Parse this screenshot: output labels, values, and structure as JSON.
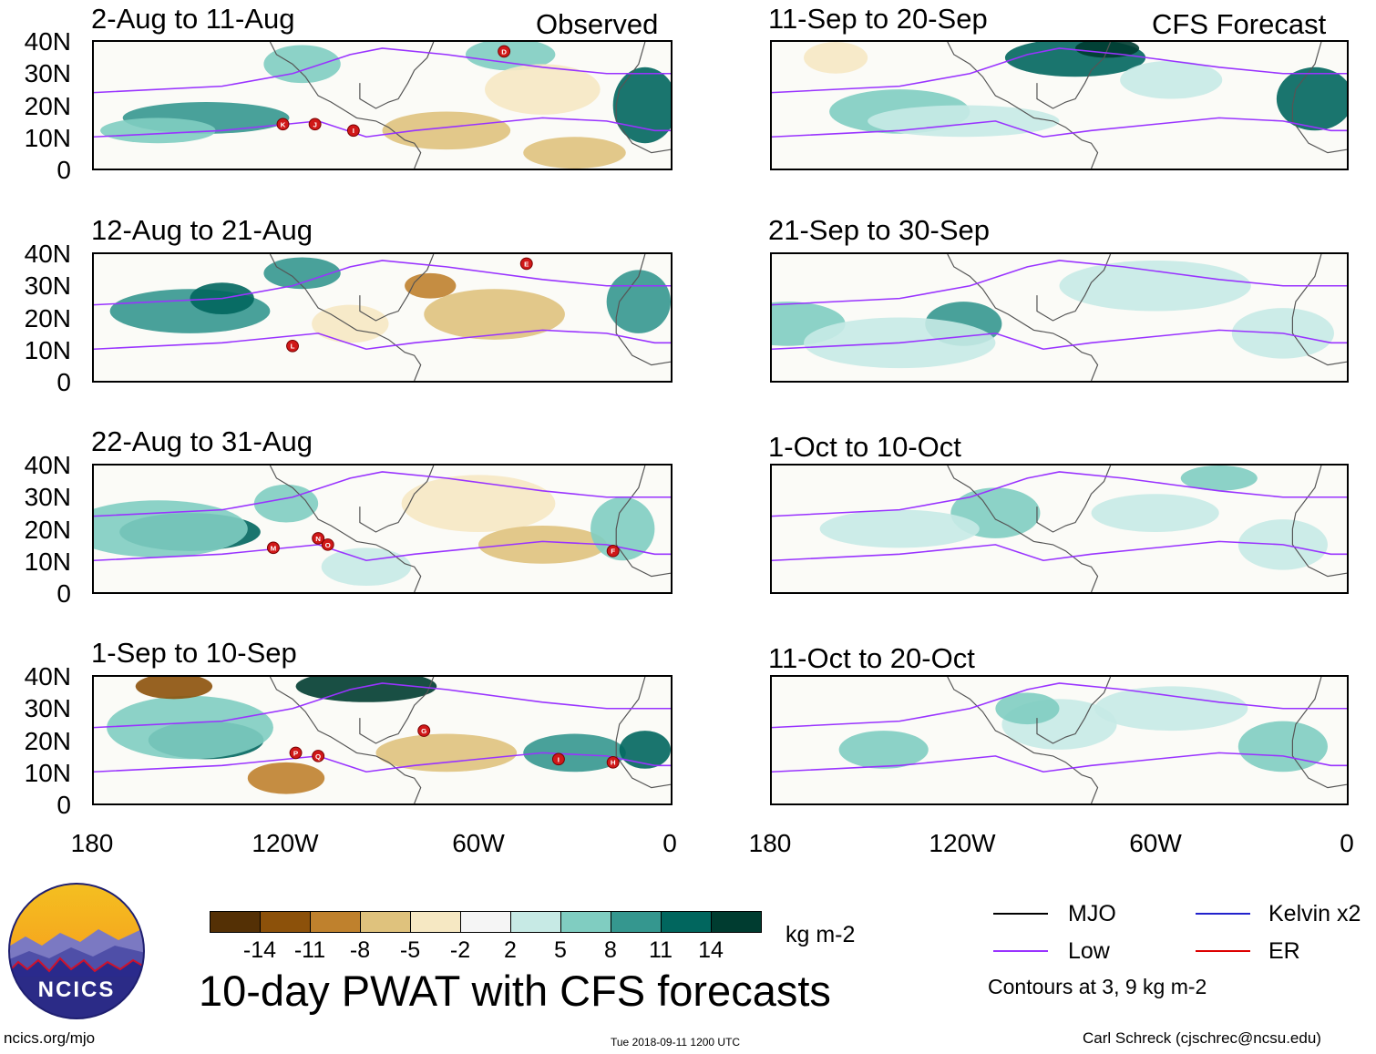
{
  "chart_data": {
    "type": "heatmap",
    "title": "10-day PWAT with CFS forecasts",
    "columns": [
      "Observed",
      "CFS Forecast"
    ],
    "lat_ticks": [
      "40N",
      "30N",
      "20N",
      "10N",
      "0"
    ],
    "lon_ticks": [
      "180",
      "120W",
      "60W",
      "0"
    ],
    "lat_range": [
      0,
      40
    ],
    "lon_range": [
      -180,
      0
    ],
    "panels": [
      {
        "period": "2-Aug to 11-Aug",
        "column": "Observed",
        "storms": [
          {
            "label": "D",
            "lon": -52,
            "lat": 37
          },
          {
            "label": "K",
            "lon": -121,
            "lat": 14
          },
          {
            "label": "J",
            "lon": -111,
            "lat": 14
          },
          {
            "label": "I",
            "lon": -99,
            "lat": 12
          }
        ]
      },
      {
        "period": "12-Aug to 21-Aug",
        "column": "Observed",
        "storms": [
          {
            "label": "E",
            "lon": -45,
            "lat": 37
          },
          {
            "label": "L",
            "lon": -118,
            "lat": 11
          }
        ]
      },
      {
        "period": "22-Aug to 31-Aug",
        "column": "Observed",
        "storms": [
          {
            "label": "M",
            "lon": -124,
            "lat": 14
          },
          {
            "label": "N",
            "lon": -110,
            "lat": 17
          },
          {
            "label": "O",
            "lon": -107,
            "lat": 15
          },
          {
            "label": "F",
            "lon": -18,
            "lat": 13
          }
        ]
      },
      {
        "period": "1-Sep to 10-Sep",
        "column": "Observed",
        "storms": [
          {
            "label": "G",
            "lon": -77,
            "lat": 23
          },
          {
            "label": "P",
            "lon": -117,
            "lat": 16
          },
          {
            "label": "Q",
            "lon": -110,
            "lat": 15
          },
          {
            "label": "I",
            "lon": -35,
            "lat": 14
          },
          {
            "label": "H",
            "lon": -18,
            "lat": 13
          }
        ]
      },
      {
        "period": "11-Sep to 20-Sep",
        "column": "CFS Forecast",
        "storms": []
      },
      {
        "period": "21-Sep to 30-Sep",
        "column": "CFS Forecast",
        "storms": []
      },
      {
        "period": "1-Oct to 10-Oct",
        "column": "CFS Forecast",
        "storms": []
      },
      {
        "period": "11-Oct to 20-Oct",
        "column": "CFS Forecast",
        "storms": []
      }
    ],
    "colorbar": {
      "unit": "kg m-2",
      "ticks": [
        "-14",
        "-11",
        "-8",
        "-5",
        "-2",
        "2",
        "5",
        "8",
        "11",
        "14"
      ],
      "colors": [
        "#543005",
        "#8c510a",
        "#bf812d",
        "#dfc27d",
        "#f6e8c3",
        "#f5f5f5",
        "#c7eae5",
        "#80cdc1",
        "#35978f",
        "#01665e",
        "#003c30"
      ]
    },
    "contour_legend": [
      {
        "label": "MJO",
        "color": "#000000"
      },
      {
        "label": "Kelvin x2",
        "color": "#2222cc"
      },
      {
        "label": "Low",
        "color": "#9933ff"
      },
      {
        "label": "ER",
        "color": "#dd0000"
      }
    ],
    "contour_note": "Contours at 3, 9 kg m-2"
  },
  "branding": {
    "logo_text": "NCICS",
    "site": "ncics.org/mjo"
  },
  "timestamp": "Tue 2018-09-11 1200 UTC",
  "author": "Carl Schreck (cjschrec@ncsu.edu)"
}
